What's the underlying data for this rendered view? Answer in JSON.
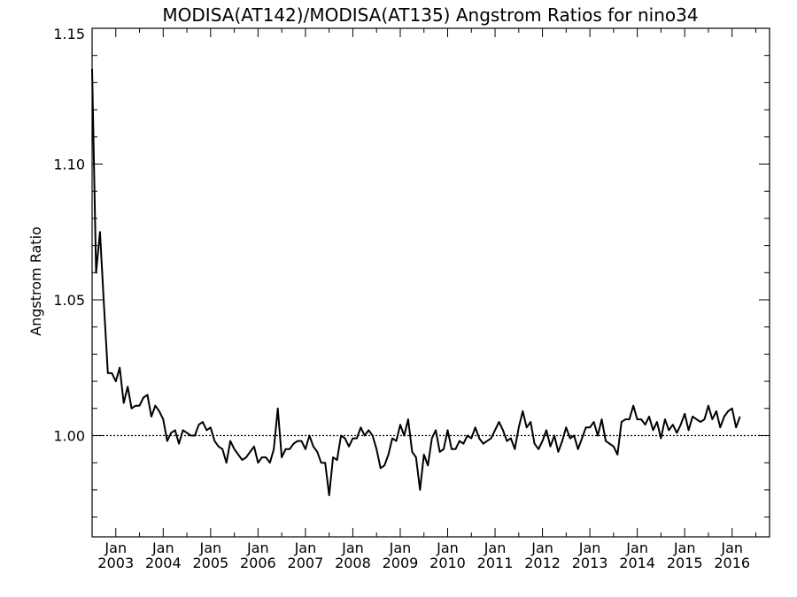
{
  "chart_data": {
    "type": "line",
    "title": "MODISA(AT142)/MODISA(AT135)  Angstrom Ratios for nino34",
    "xlabel": "",
    "ylabel": "Angstrom Ratio",
    "xlim": [
      2002.5,
      2016.79
    ],
    "ylim": [
      0.9627,
      1.15
    ],
    "yticks": [
      {
        "value": 1.1,
        "label": "1.10"
      },
      {
        "value": 1.05,
        "label": "1.05"
      },
      {
        "value": 1.0,
        "label": "1.00"
      }
    ],
    "ytop_label": {
      "value": 1.15,
      "label": "1.15"
    },
    "xticks": [
      {
        "value": 2003,
        "month": "Jan",
        "year": "2003"
      },
      {
        "value": 2004,
        "month": "Jan",
        "year": "2004"
      },
      {
        "value": 2005,
        "month": "Jan",
        "year": "2005"
      },
      {
        "value": 2006,
        "month": "Jan",
        "year": "2006"
      },
      {
        "value": 2007,
        "month": "Jan",
        "year": "2007"
      },
      {
        "value": 2008,
        "month": "Jan",
        "year": "2008"
      },
      {
        "value": 2009,
        "month": "Jan",
        "year": "2009"
      },
      {
        "value": 2010,
        "month": "Jan",
        "year": "2010"
      },
      {
        "value": 2011,
        "month": "Jan",
        "year": "2011"
      },
      {
        "value": 2012,
        "month": "Jan",
        "year": "2012"
      },
      {
        "value": 2013,
        "month": "Jan",
        "year": "2013"
      },
      {
        "value": 2014,
        "month": "Jan",
        "year": "2014"
      },
      {
        "value": 2015,
        "month": "Jan",
        "year": "2015"
      },
      {
        "value": 2016,
        "month": "Jan",
        "year": "2016"
      }
    ],
    "reference_line": {
      "value": 1.0,
      "style": "dotted"
    },
    "grid": false,
    "series": [
      {
        "start": 2002.5,
        "step": 0.0833333,
        "values": [
          1.135,
          1.06,
          1.075,
          1.048,
          1.023,
          1.023,
          1.02,
          1.025,
          1.012,
          1.018,
          1.01,
          1.011,
          1.011,
          1.014,
          1.015,
          1.007,
          1.011,
          1.009,
          1.006,
          0.998,
          1.001,
          1.002,
          0.997,
          1.002,
          1.001,
          1.0,
          1.0,
          1.004,
          1.005,
          1.002,
          1.003,
          0.998,
          0.996,
          0.995,
          0.99,
          0.998,
          0.995,
          0.993,
          0.991,
          0.992,
          0.994,
          0.996,
          0.99,
          0.992,
          0.992,
          0.99,
          0.995,
          1.01,
          0.992,
          0.995,
          0.995,
          0.997,
          0.998,
          0.998,
          0.995,
          1.0,
          0.996,
          0.994,
          0.99,
          0.99,
          0.978,
          0.992,
          0.991,
          1.0,
          0.999,
          0.996,
          0.999,
          0.999,
          1.003,
          1.0,
          1.002,
          1.0,
          0.995,
          0.988,
          0.989,
          0.993,
          0.999,
          0.998,
          1.004,
          1.0,
          1.006,
          0.994,
          0.992,
          0.98,
          0.993,
          0.989,
          0.999,
          1.002,
          0.994,
          0.995,
          1.002,
          0.995,
          0.995,
          0.998,
          0.997,
          1.0,
          0.999,
          1.003,
          0.999,
          0.997,
          0.998,
          0.999,
          1.002,
          1.005,
          1.002,
          0.998,
          0.999,
          0.995,
          1.003,
          1.009,
          1.003,
          1.005,
          0.997,
          0.995,
          0.998,
          1.002,
          0.996,
          1.0,
          0.994,
          0.998,
          1.003,
          0.999,
          1.0,
          0.995,
          0.999,
          1.003,
          1.003,
          1.005,
          1.0,
          1.006,
          0.998,
          0.997,
          0.996,
          0.993,
          1.005,
          1.006,
          1.006,
          1.011,
          1.006,
          1.006,
          1.004,
          1.007,
          1.002,
          1.005,
          0.999,
          1.006,
          1.002,
          1.004,
          1.001,
          1.004,
          1.008,
          1.002,
          1.007,
          1.006,
          1.005,
          1.006,
          1.011,
          1.006,
          1.009,
          1.003,
          1.007,
          1.009,
          1.01,
          1.003,
          1.007
        ]
      }
    ]
  }
}
